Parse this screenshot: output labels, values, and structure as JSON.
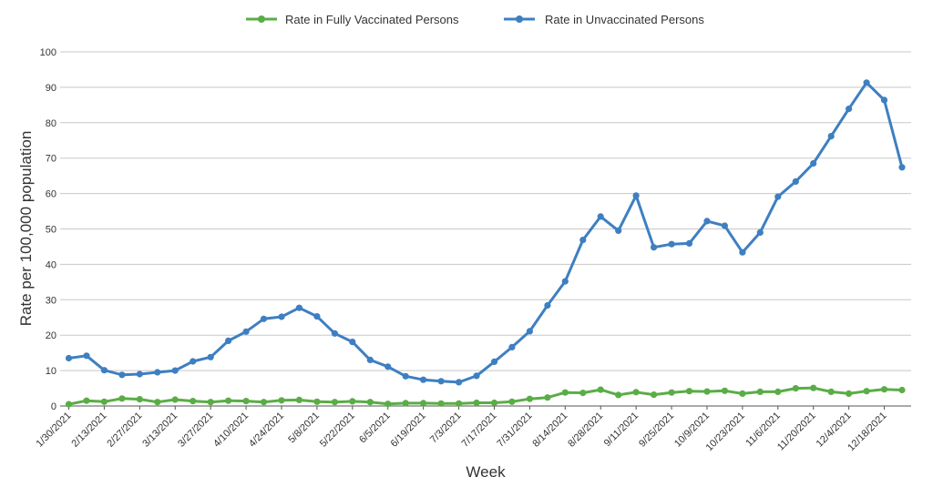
{
  "chart_data": {
    "type": "line",
    "xlabel": "Week",
    "ylabel": "Rate per 100,000 population",
    "ylim": [
      0,
      100
    ],
    "yticks": [
      0,
      10,
      20,
      30,
      40,
      50,
      60,
      70,
      80,
      90,
      100
    ],
    "grid": true,
    "legend_position": "top-center",
    "x": [
      "1/30/2021",
      "2/6/2021",
      "2/13/2021",
      "2/20/2021",
      "2/27/2021",
      "3/6/2021",
      "3/13/2021",
      "3/20/2021",
      "3/27/2021",
      "4/3/2021",
      "4/10/2021",
      "4/17/2021",
      "4/24/2021",
      "5/1/2021",
      "5/8/2021",
      "5/15/2021",
      "5/22/2021",
      "5/29/2021",
      "6/5/2021",
      "6/12/2021",
      "6/19/2021",
      "6/26/2021",
      "7/3/2021",
      "7/10/2021",
      "7/17/2021",
      "7/24/2021",
      "7/31/2021",
      "8/7/2021",
      "8/14/2021",
      "8/21/2021",
      "8/28/2021",
      "9/4/2021",
      "9/11/2021",
      "9/18/2021",
      "9/25/2021",
      "10/2/2021",
      "10/9/2021",
      "10/16/2021",
      "10/23/2021",
      "10/30/2021",
      "11/6/2021",
      "11/13/2021",
      "11/20/2021",
      "11/27/2021",
      "12/4/2021",
      "12/11/2021",
      "12/18/2021",
      "12/25/2021"
    ],
    "tick_labels": [
      "1/30/2021",
      "2/13/2021",
      "2/27/2021",
      "3/13/2021",
      "3/27/2021",
      "4/10/2021",
      "4/24/2021",
      "5/8/2021",
      "5/22/2021",
      "6/5/2021",
      "6/19/2021",
      "7/3/2021",
      "7/17/2021",
      "7/31/2021",
      "8/14/2021",
      "8/28/2021",
      "9/11/2021",
      "9/25/2021",
      "10/9/2021",
      "10/23/2021",
      "11/6/2021",
      "11/20/2021",
      "12/4/2021",
      "12/18/2021"
    ],
    "series": [
      {
        "name": "Rate in Fully Vaccinated Persons",
        "color": "#5aad46",
        "values": [
          0.5,
          1.5,
          1.2,
          2.1,
          1.9,
          1.1,
          1.8,
          1.4,
          1.1,
          1.5,
          1.4,
          1.1,
          1.6,
          1.7,
          1.2,
          1.1,
          1.3,
          1.1,
          0.6,
          0.8,
          0.8,
          0.7,
          0.7,
          0.9,
          0.9,
          1.2,
          2.0,
          2.4,
          3.8,
          3.7,
          4.6,
          3.1,
          3.9,
          3.2,
          3.8,
          4.2,
          4.1,
          4.3,
          3.5,
          4.0,
          4.0,
          5.0,
          5.1,
          4.0,
          3.5,
          4.2,
          4.7,
          4.5
        ]
      },
      {
        "name": "Rate in Unvaccinated Persons",
        "color": "#3e7fc1",
        "values": [
          13.5,
          14.2,
          10.1,
          8.8,
          9.0,
          9.5,
          10.0,
          12.6,
          13.8,
          18.4,
          21.0,
          24.6,
          25.2,
          27.7,
          25.3,
          20.5,
          18.1,
          13.0,
          11.1,
          8.4,
          7.4,
          7.0,
          6.7,
          8.5,
          12.5,
          16.6,
          21.1,
          28.4,
          35.2,
          46.9,
          53.5,
          49.5,
          59.4,
          44.8,
          45.7,
          45.9,
          52.2,
          50.9,
          43.4,
          49.0,
          59.1,
          63.4,
          68.5,
          76.2,
          83.9,
          91.3,
          86.4,
          67.4
        ]
      }
    ]
  }
}
